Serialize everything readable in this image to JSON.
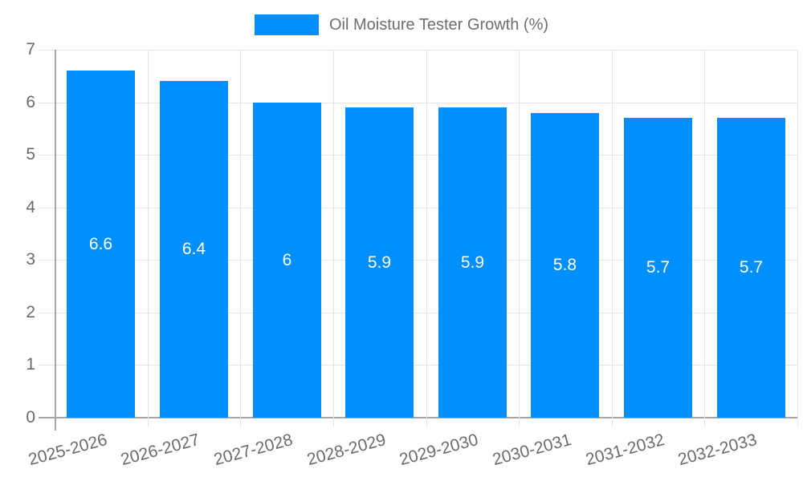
{
  "chart_data": {
    "type": "bar",
    "title": "",
    "series_name": "Oil Moisture Tester Growth (%)",
    "categories": [
      "2025-2026",
      "2026-2027",
      "2027-2028",
      "2028-2029",
      "2029-2030",
      "2030-2031",
      "2031-2032",
      "2032-2033"
    ],
    "values": [
      6.6,
      6.4,
      6,
      5.9,
      5.9,
      5.8,
      5.7,
      5.7
    ],
    "bar_labels": [
      "6.6",
      "6.4",
      "6",
      "5.9",
      "5.9",
      "5.8",
      "5.7",
      "5.7"
    ],
    "xlabel": "",
    "ylabel": "",
    "ylim": [
      0,
      7
    ],
    "yticks": [
      "0",
      "1",
      "2",
      "3",
      "4",
      "5",
      "6",
      "7"
    ],
    "grid": true,
    "legend_position": "top",
    "colors": {
      "bar": "#008FFB",
      "grid": "#E5E5E5",
      "axis": "#A6A6A6",
      "axis_text": "#6B6B6B",
      "legend_text": "#6E6E6E",
      "bar_label_text": "#FFFFFF",
      "background": "#FFFFFF"
    }
  }
}
